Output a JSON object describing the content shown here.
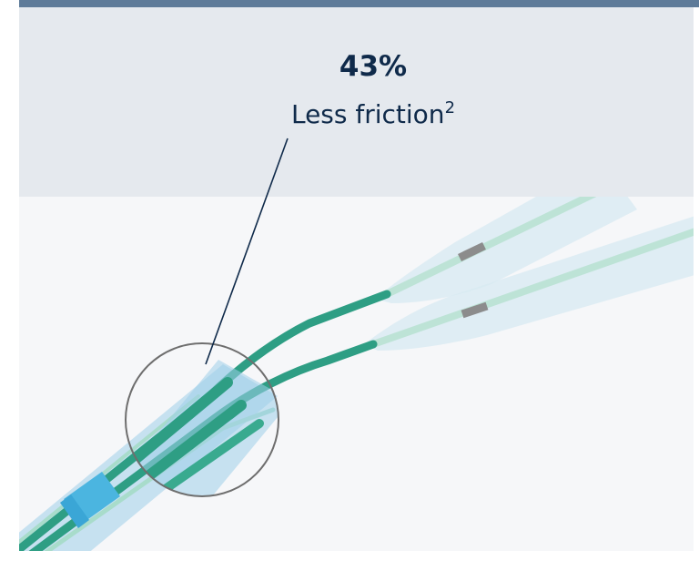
{
  "callout": {
    "value": "43%",
    "label": "Less friction",
    "footnote": "2"
  },
  "colors": {
    "top_rule": "#5e7b99",
    "panel": "#e5e9ee",
    "text": "#0f2a4a",
    "catheter_teal": "#2e9e84",
    "catheter_light": "#a8dccb",
    "sheath_blue": "#9fd0ea",
    "collar_blue": "#4bb5e0",
    "marker_band": "#8c8c8c"
  },
  "icons": [
    "magnifier-circle",
    "pointer-line"
  ]
}
